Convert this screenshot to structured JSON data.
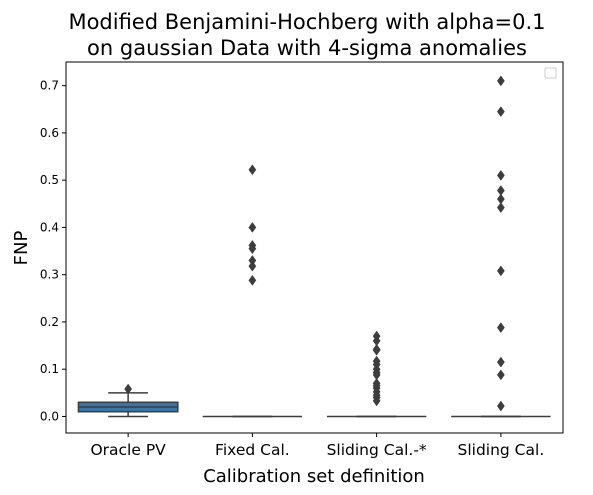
{
  "chart_data": {
    "type": "box",
    "title_line1": "Modified Benjamini-Hochberg with alpha=0.1",
    "title_line2": "on gaussian Data with 4-sigma anomalies",
    "xlabel": "Calibration set definition",
    "ylabel": "FNP",
    "ylim": [
      -0.035,
      0.75
    ],
    "yticks": [
      0.0,
      0.1,
      0.2,
      0.3,
      0.4,
      0.5,
      0.6,
      0.7
    ],
    "ytick_labels": [
      "0.0",
      "0.1",
      "0.2",
      "0.3",
      "0.4",
      "0.5",
      "0.6",
      "0.7"
    ],
    "categories": [
      "Oracle PV",
      "Fixed Cal.",
      "Sliding Cal.-*",
      "Sliding Cal."
    ],
    "legend": "top-right (empty)",
    "grid": false,
    "boxes": [
      {
        "category": "Oracle PV",
        "whisker_low": 0.0,
        "q1": 0.01,
        "median": 0.02,
        "q3": 0.03,
        "whisker_high": 0.05,
        "outliers": [
          0.058
        ],
        "color": "#3a75a8"
      },
      {
        "category": "Fixed Cal.",
        "whisker_low": 0.0,
        "q1": 0.0,
        "median": 0.0,
        "q3": 0.0,
        "whisker_high": 0.0,
        "outliers": [
          0.522,
          0.4,
          0.362,
          0.355,
          0.33,
          0.318,
          0.288
        ],
        "color": "#d9823b"
      },
      {
        "category": "Sliding Cal.-*",
        "whisker_low": 0.0,
        "q1": 0.0,
        "median": 0.0,
        "q3": 0.0,
        "whisker_high": 0.0,
        "outliers": [
          0.17,
          0.16,
          0.142,
          0.14,
          0.117,
          0.11,
          0.1,
          0.093,
          0.088,
          0.07,
          0.065,
          0.06,
          0.052,
          0.045,
          0.04,
          0.033
        ],
        "color": "#4e9a4a"
      },
      {
        "category": "Sliding Cal.",
        "whisker_low": 0.0,
        "q1": 0.0,
        "median": 0.0,
        "q3": 0.0,
        "whisker_high": 0.0,
        "outliers": [
          0.71,
          0.645,
          0.51,
          0.478,
          0.46,
          0.442,
          0.308,
          0.188,
          0.115,
          0.088,
          0.022
        ],
        "color": "#c03d3e"
      }
    ],
    "line_color": "#3d3d3d"
  }
}
